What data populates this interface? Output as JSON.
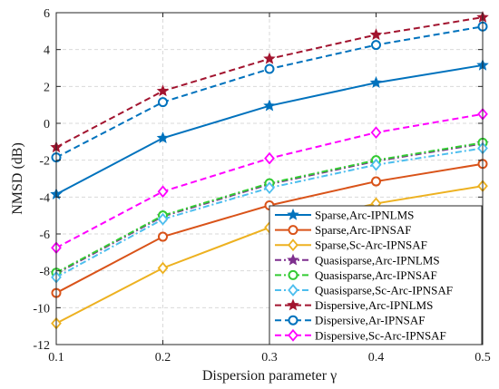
{
  "chart_data": {
    "type": "line",
    "xlabel": "Dispersion parameter γ",
    "ylabel": "NMSD (dB)",
    "x": [
      0.1,
      0.2,
      0.3,
      0.4,
      0.5
    ],
    "xlim": [
      0.1,
      0.5
    ],
    "ylim": [
      -12,
      6
    ],
    "xticks": [
      "0.1",
      "0.2",
      "0.3",
      "0.4",
      "0.5"
    ],
    "yticks": [
      "-12",
      "-10",
      "-8",
      "-6",
      "-4",
      "-2",
      "0",
      "2",
      "4",
      "6"
    ],
    "grid": true,
    "legend_position": "bottom-right",
    "series": [
      {
        "name": "Sparse,Arc-IPNLMS",
        "values": [
          -3.85,
          -0.8,
          0.95,
          2.2,
          3.15
        ],
        "color": "#0072BD",
        "marker": "star",
        "dash": "solid"
      },
      {
        "name": "Sparse,Arc-IPNSAF",
        "values": [
          -9.2,
          -6.15,
          -4.45,
          -3.15,
          -2.2
        ],
        "color": "#D95319",
        "marker": "circle",
        "dash": "solid"
      },
      {
        "name": "Sparse,Sc-Arc-IPNSAF",
        "values": [
          -10.85,
          -7.85,
          -5.65,
          -4.35,
          -3.4
        ],
        "color": "#EDB120",
        "marker": "diamond",
        "dash": "solid"
      },
      {
        "name": "Quasisparse,Arc-IPNLMS",
        "values": [
          -8.15,
          -5.05,
          -3.3,
          -2.05,
          -1.1
        ],
        "color": "#7E2F8E",
        "marker": "star",
        "dash": "dashdot"
      },
      {
        "name": "Quasisparse,Arc-IPNSAF",
        "values": [
          -8.1,
          -5.0,
          -3.25,
          -2.0,
          -1.05
        ],
        "color": "#33CC33",
        "marker": "circle",
        "dash": "dashdot"
      },
      {
        "name": "Quasisparse,Sc-Arc-IPNSAF",
        "values": [
          -8.35,
          -5.2,
          -3.5,
          -2.25,
          -1.35
        ],
        "color": "#4DBEEE",
        "marker": "diamond",
        "dash": "dashdot"
      },
      {
        "name": "Dispersive,Arc-IPNLMS",
        "values": [
          -1.3,
          1.75,
          3.5,
          4.8,
          5.75
        ],
        "color": "#A2142F",
        "marker": "star",
        "dash": "dashed"
      },
      {
        "name": "Dispersive,Ar-IPNSAF",
        "values": [
          -1.85,
          1.15,
          2.95,
          4.25,
          5.25
        ],
        "color": "#0072BD",
        "marker": "circle",
        "dash": "dashed"
      },
      {
        "name": "Dispersive,Sc-Arc-IPNSAF",
        "values": [
          -6.75,
          -3.7,
          -1.9,
          -0.5,
          0.5
        ],
        "color": "#FF00FF",
        "marker": "diamond",
        "dash": "dashed"
      }
    ]
  }
}
